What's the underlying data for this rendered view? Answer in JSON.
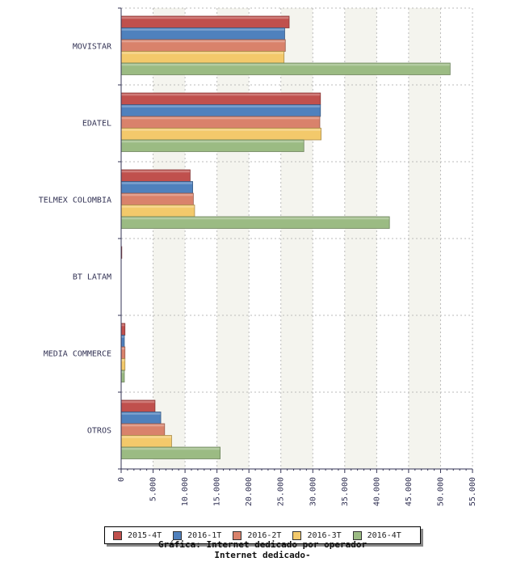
{
  "chart_data": {
    "type": "bar",
    "orientation": "horizontal",
    "categories": [
      "MOVISTAR",
      "EDATEL",
      "TELMEX COLOMBIA",
      "BT LATAM",
      "MEDIA COMMERCE",
      "OTROS"
    ],
    "series": [
      {
        "name": "2015-4T",
        "color": "#c0504d",
        "values": [
          26300,
          31200,
          10800,
          100,
          600,
          5300
        ]
      },
      {
        "name": "2016-1T",
        "color": "#4f81bd",
        "values": [
          25600,
          31200,
          11200,
          0,
          500,
          6200
        ]
      },
      {
        "name": "2016-2T",
        "color": "#d9826b",
        "values": [
          25700,
          31100,
          11300,
          0,
          600,
          6800
        ]
      },
      {
        "name": "2016-3T",
        "color": "#f3c96b",
        "values": [
          25500,
          31300,
          11500,
          0,
          600,
          7900
        ]
      },
      {
        "name": "2016-4T",
        "color": "#9bbb83",
        "values": [
          51500,
          28600,
          42000,
          0,
          500,
          15500
        ]
      }
    ],
    "xlim": [
      0,
      55000
    ],
    "x_ticks": [
      "0",
      "5.000",
      "10.000",
      "15.000",
      "20.000",
      "25.000",
      "30.000",
      "35.000",
      "40.000",
      "45.000",
      "50.000",
      "55.000"
    ],
    "title": "Internet dedicado-",
    "subtitle": "Gráfica: Internet dedicado por operador",
    "grid": true,
    "legend_position": "bottom"
  }
}
